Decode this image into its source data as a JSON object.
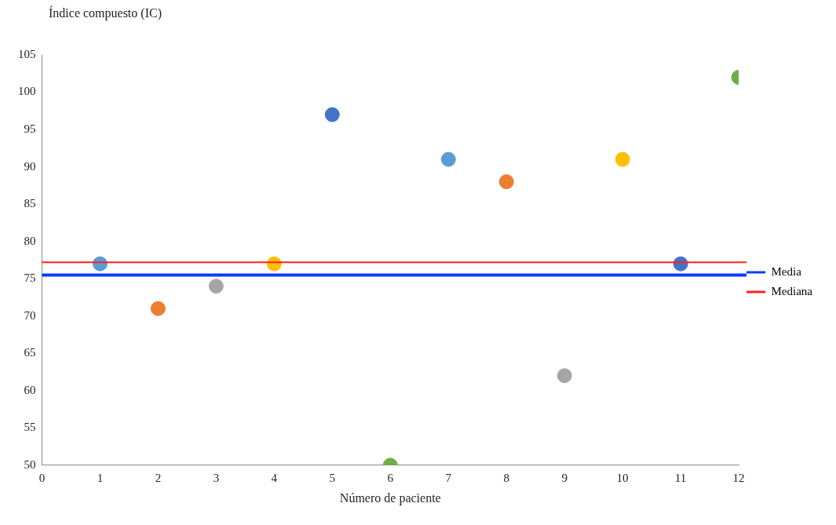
{
  "chart_data": {
    "type": "scatter",
    "ylabel": "Índice compuesto (IC)",
    "xlabel": "Número de paciente",
    "x": [
      1,
      2,
      3,
      4,
      5,
      6,
      7,
      8,
      9,
      10,
      11,
      12
    ],
    "values": [
      77,
      71,
      74,
      77,
      97,
      50,
      91,
      88,
      62,
      91,
      77,
      102
    ],
    "colors": [
      "#5b9bd5",
      "#ed7d31",
      "#a5a5a5",
      "#ffc000",
      "#4472c4",
      "#70ad47",
      "#5b9bd5",
      "#ed7d31",
      "#a5a5a5",
      "#ffc000",
      "#4472c4",
      "#70ad47"
    ],
    "xlim": [
      0,
      12
    ],
    "xticks": [
      0,
      1,
      2,
      3,
      4,
      5,
      6,
      7,
      8,
      9,
      10,
      11,
      12
    ],
    "ylim": [
      50,
      105
    ],
    "yticks": [
      50,
      55,
      60,
      65,
      70,
      75,
      80,
      85,
      90,
      95,
      100,
      105
    ],
    "ref_lines": [
      {
        "axis": "y",
        "value": 75.5,
        "label": "Media",
        "color": "#0a3cff"
      },
      {
        "axis": "y",
        "value": 77.2,
        "label": "Mediana",
        "color": "#ff2020"
      }
    ],
    "marker": "circle",
    "grid": false,
    "legend": "right"
  }
}
